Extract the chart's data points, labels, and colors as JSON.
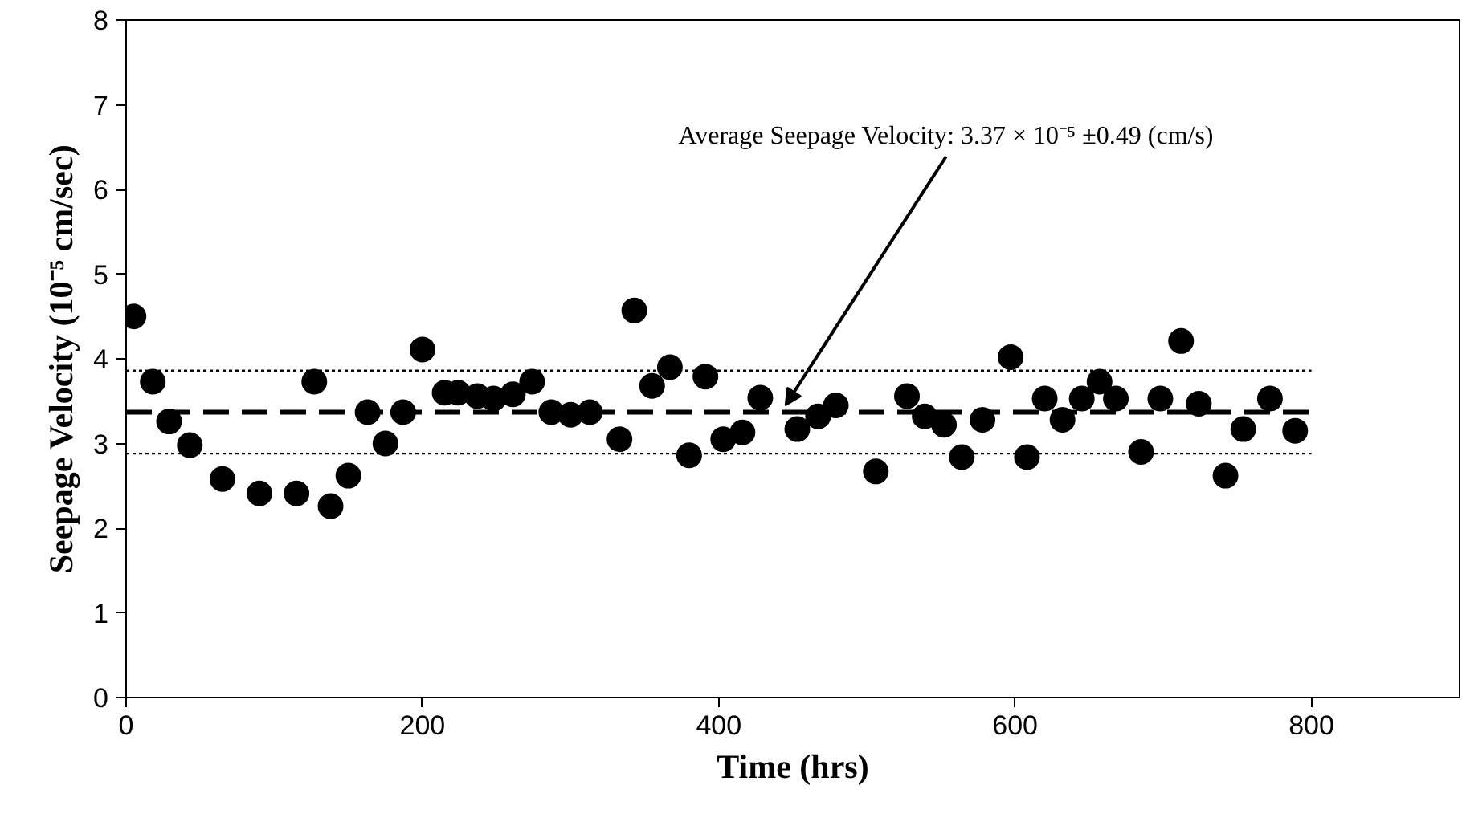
{
  "chart_data": {
    "type": "scatter",
    "xlabel": "Time (hrs)",
    "ylabel": "Seepage Velocity (10⁻⁵ cm/sec)",
    "xlim": [
      0,
      900
    ],
    "ylim": [
      0,
      8
    ],
    "xticks": [
      0,
      200,
      400,
      600,
      800
    ],
    "yticks": [
      0,
      1,
      2,
      3,
      4,
      5,
      6,
      7,
      8
    ],
    "grid": false,
    "series": [
      {
        "marker": "circle",
        "color": "#000000",
        "x": [
          5,
          18,
          29,
          43,
          65,
          90,
          115,
          127,
          138,
          150,
          163,
          175,
          187,
          200,
          215,
          224,
          237,
          248,
          261,
          274,
          287,
          300,
          313,
          333,
          343,
          355,
          367,
          380,
          391,
          403,
          416,
          428,
          453,
          467,
          479,
          506,
          527,
          539,
          552,
          564,
          578,
          597,
          608,
          620,
          632,
          645,
          657,
          668,
          685,
          698,
          712,
          724,
          742,
          754,
          772,
          789
        ],
        "values": [
          4.5,
          3.73,
          3.26,
          2.98,
          2.58,
          2.41,
          2.41,
          3.73,
          2.26,
          2.62,
          3.37,
          3.0,
          3.37,
          4.11,
          3.6,
          3.6,
          3.56,
          3.53,
          3.58,
          3.73,
          3.37,
          3.34,
          3.37,
          3.05,
          4.57,
          3.68,
          3.9,
          2.86,
          3.79,
          3.05,
          3.13,
          3.54,
          3.17,
          3.32,
          3.45,
          2.67,
          3.56,
          3.32,
          3.22,
          2.84,
          3.28,
          4.02,
          2.84,
          3.53,
          3.28,
          3.53,
          3.73,
          3.53,
          2.9,
          3.53,
          4.21,
          3.47,
          2.62,
          3.17,
          3.53,
          3.15
        ]
      },
      {
        "type": "line",
        "color": "#000000",
        "line_style": "dashed",
        "x": [
          0,
          800
        ],
        "values": [
          3.37,
          3.37
        ]
      },
      {
        "type": "line",
        "color": "#000000",
        "line_style": "dotted",
        "x": [
          0,
          800
        ],
        "values": [
          3.86,
          3.86
        ]
      },
      {
        "type": "line",
        "color": "#000000",
        "line_style": "dotted",
        "x": [
          0,
          800
        ],
        "values": [
          2.88,
          2.88
        ]
      }
    ],
    "annotations": [
      {
        "text": "Average Seepage Velocity: 3.37 × 10⁻⁵ ±0.49 (cm/s)",
        "x": 445,
        "y": 3.45
      }
    ]
  }
}
